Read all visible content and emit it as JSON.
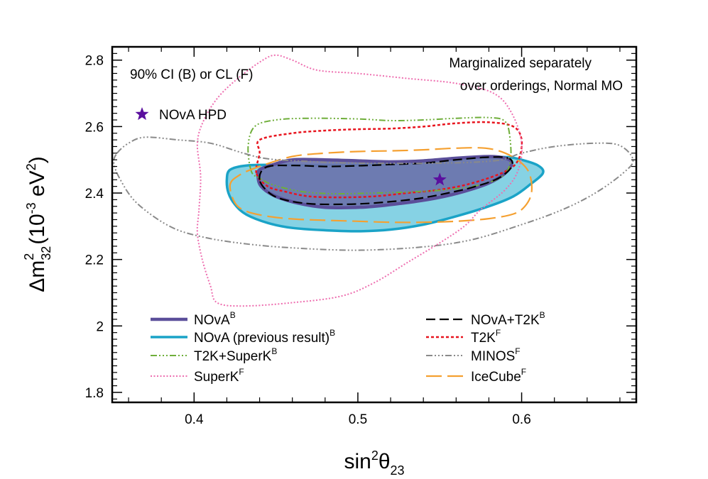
{
  "chart_data": {
    "type": "contour",
    "xlabel": {
      "base": "sin",
      "sup": "2",
      "sym": "θ",
      "sub": "23"
    },
    "ylabel": {
      "base": "Δm",
      "sub": "32",
      "sup": "2",
      "unit_open": "(10",
      "unit_exp": "-3",
      "unit_mid": " eV",
      "unit_sup": "2",
      "unit_close": ")"
    },
    "xlim": [
      0.35,
      0.67
    ],
    "ylim": [
      1.77,
      2.84
    ],
    "xticks": [
      0.4,
      0.5,
      0.6
    ],
    "yticks": [
      1.8,
      2.0,
      2.2,
      2.4,
      2.6,
      2.8
    ],
    "xtick_labels": [
      "0.4",
      "0.5",
      "0.6"
    ],
    "ytick_labels": [
      "1.8",
      "2",
      "2.2",
      "2.4",
      "2.6",
      "2.8"
    ],
    "annotations": {
      "ci": "90% CI (B) or CL (F)",
      "marg1": "Marginalized separately",
      "marg2": "over orderings, Normal MO",
      "hpd": "NOvA HPD"
    },
    "best_fit": {
      "x": 0.55,
      "y": 2.44,
      "color": "#5a0f9e",
      "label": "NOvA HPD"
    },
    "colors": {
      "nova": "#5b4f9a",
      "nova_fill": "#6b73ad",
      "nova_prev": "#1aa3c7",
      "nova_prev_fill": "#7fd0e3",
      "t2k_superk": "#6fae3a",
      "superk": "#ee6fb0",
      "nova_t2k": "#000000",
      "t2k": "#e8141e",
      "minos": "#8a8a8a",
      "icecube": "#f5a030"
    },
    "series": [
      {
        "id": "nova_prev",
        "name": "NOvA (previous result)",
        "sup": "B",
        "points": [
          [
            0.422,
            2.47
          ],
          [
            0.432,
            2.483
          ],
          [
            0.45,
            2.485
          ],
          [
            0.47,
            2.484
          ],
          [
            0.5,
            2.485
          ],
          [
            0.52,
            2.487
          ],
          [
            0.54,
            2.495
          ],
          [
            0.56,
            2.502
          ],
          [
            0.58,
            2.507
          ],
          [
            0.592,
            2.508
          ],
          [
            0.6,
            2.5
          ],
          [
            0.61,
            2.483
          ],
          [
            0.613,
            2.46
          ],
          [
            0.605,
            2.425
          ],
          [
            0.595,
            2.39
          ],
          [
            0.58,
            2.36
          ],
          [
            0.56,
            2.33
          ],
          [
            0.54,
            2.305
          ],
          [
            0.52,
            2.29
          ],
          [
            0.5,
            2.285
          ],
          [
            0.48,
            2.288
          ],
          [
            0.46,
            2.295
          ],
          [
            0.445,
            2.31
          ],
          [
            0.432,
            2.335
          ],
          [
            0.425,
            2.365
          ],
          [
            0.421,
            2.4
          ],
          [
            0.42,
            2.44
          ]
        ]
      },
      {
        "id": "nova",
        "name": "NOvA",
        "sup": "B",
        "points": [
          [
            0.44,
            2.47
          ],
          [
            0.448,
            2.485
          ],
          [
            0.46,
            2.5
          ],
          [
            0.48,
            2.5
          ],
          [
            0.5,
            2.497
          ],
          [
            0.52,
            2.494
          ],
          [
            0.54,
            2.497
          ],
          [
            0.56,
            2.505
          ],
          [
            0.58,
            2.51
          ],
          [
            0.59,
            2.505
          ],
          [
            0.594,
            2.49
          ],
          [
            0.59,
            2.46
          ],
          [
            0.58,
            2.43
          ],
          [
            0.565,
            2.405
          ],
          [
            0.548,
            2.385
          ],
          [
            0.528,
            2.37
          ],
          [
            0.505,
            2.358
          ],
          [
            0.48,
            2.357
          ],
          [
            0.463,
            2.37
          ],
          [
            0.449,
            2.392
          ],
          [
            0.441,
            2.42
          ],
          [
            0.439,
            2.45
          ]
        ]
      },
      {
        "id": "t2k",
        "name": "T2K",
        "sup": "F",
        "points": [
          [
            0.438,
            2.46
          ],
          [
            0.44,
            2.52
          ],
          [
            0.44,
            2.56
          ],
          [
            0.46,
            2.58
          ],
          [
            0.48,
            2.588
          ],
          [
            0.5,
            2.592
          ],
          [
            0.52,
            2.594
          ],
          [
            0.54,
            2.6
          ],
          [
            0.56,
            2.61
          ],
          [
            0.58,
            2.613
          ],
          [
            0.595,
            2.6
          ],
          [
            0.6,
            2.56
          ],
          [
            0.598,
            2.5
          ],
          [
            0.59,
            2.465
          ],
          [
            0.57,
            2.43
          ],
          [
            0.55,
            2.41
          ],
          [
            0.53,
            2.4
          ],
          [
            0.51,
            2.39
          ],
          [
            0.49,
            2.387
          ],
          [
            0.47,
            2.39
          ],
          [
            0.455,
            2.405
          ],
          [
            0.445,
            2.42
          ]
        ]
      },
      {
        "id": "t2k_superk",
        "name": "T2K+SuperK",
        "sup": "B",
        "points": [
          [
            0.435,
            2.465
          ],
          [
            0.433,
            2.54
          ],
          [
            0.437,
            2.6
          ],
          [
            0.45,
            2.62
          ],
          [
            0.47,
            2.625
          ],
          [
            0.5,
            2.623
          ],
          [
            0.52,
            2.618
          ],
          [
            0.54,
            2.62
          ],
          [
            0.56,
            2.625
          ],
          [
            0.58,
            2.627
          ],
          [
            0.59,
            2.615
          ],
          [
            0.593,
            2.56
          ],
          [
            0.593,
            2.49
          ],
          [
            0.588,
            2.45
          ],
          [
            0.575,
            2.425
          ],
          [
            0.555,
            2.41
          ],
          [
            0.53,
            2.403
          ],
          [
            0.51,
            2.4
          ],
          [
            0.485,
            2.398
          ],
          [
            0.465,
            2.405
          ],
          [
            0.448,
            2.425
          ],
          [
            0.44,
            2.445
          ]
        ]
      },
      {
        "id": "nova_t2k",
        "name": "NOvA+T2K",
        "sup": "B",
        "points": [
          [
            0.44,
            2.44
          ],
          [
            0.444,
            2.478
          ],
          [
            0.46,
            2.483
          ],
          [
            0.48,
            2.48
          ],
          [
            0.5,
            2.482
          ],
          [
            0.52,
            2.486
          ],
          [
            0.54,
            2.49
          ],
          [
            0.56,
            2.5
          ],
          [
            0.58,
            2.508
          ],
          [
            0.592,
            2.505
          ],
          [
            0.594,
            2.48
          ],
          [
            0.586,
            2.445
          ],
          [
            0.572,
            2.42
          ],
          [
            0.555,
            2.4
          ],
          [
            0.535,
            2.382
          ],
          [
            0.51,
            2.37
          ],
          [
            0.49,
            2.366
          ],
          [
            0.47,
            2.368
          ],
          [
            0.455,
            2.38
          ],
          [
            0.446,
            2.4
          ]
        ]
      },
      {
        "id": "icecube",
        "name": "IceCube",
        "sup": "F",
        "points": [
          [
            0.422,
            2.425
          ],
          [
            0.428,
            2.455
          ],
          [
            0.44,
            2.48
          ],
          [
            0.46,
            2.51
          ],
          [
            0.48,
            2.52
          ],
          [
            0.5,
            2.525
          ],
          [
            0.52,
            2.527
          ],
          [
            0.54,
            2.53
          ],
          [
            0.56,
            2.535
          ],
          [
            0.578,
            2.535
          ],
          [
            0.59,
            2.52
          ],
          [
            0.6,
            2.49
          ],
          [
            0.605,
            2.455
          ],
          [
            0.606,
            2.4
          ],
          [
            0.602,
            2.36
          ],
          [
            0.595,
            2.337
          ],
          [
            0.58,
            2.323
          ],
          [
            0.56,
            2.315
          ],
          [
            0.54,
            2.312
          ],
          [
            0.52,
            2.312
          ],
          [
            0.5,
            2.315
          ],
          [
            0.48,
            2.318
          ],
          [
            0.46,
            2.322
          ],
          [
            0.445,
            2.33
          ],
          [
            0.432,
            2.345
          ],
          [
            0.425,
            2.37
          ]
        ]
      },
      {
        "id": "minos",
        "name": "MINOS",
        "sup": "F",
        "points": [
          [
            0.353,
            2.52
          ],
          [
            0.36,
            2.55
          ],
          [
            0.37,
            2.568
          ],
          [
            0.39,
            2.56
          ],
          [
            0.41,
            2.55
          ],
          [
            0.43,
            2.52
          ],
          [
            0.445,
            2.503
          ],
          [
            0.47,
            2.495
          ],
          [
            0.5,
            2.49
          ],
          [
            0.55,
            2.49
          ],
          [
            0.585,
            2.498
          ],
          [
            0.6,
            2.52
          ],
          [
            0.62,
            2.54
          ],
          [
            0.645,
            2.55
          ],
          [
            0.66,
            2.543
          ],
          [
            0.668,
            2.5
          ],
          [
            0.662,
            2.46
          ],
          [
            0.645,
            2.4
          ],
          [
            0.625,
            2.35
          ],
          [
            0.6,
            2.305
          ],
          [
            0.57,
            2.26
          ],
          [
            0.54,
            2.238
          ],
          [
            0.5,
            2.228
          ],
          [
            0.46,
            2.235
          ],
          [
            0.43,
            2.248
          ],
          [
            0.405,
            2.268
          ],
          [
            0.385,
            2.3
          ],
          [
            0.365,
            2.37
          ],
          [
            0.355,
            2.44
          ],
          [
            0.351,
            2.49
          ]
        ]
      },
      {
        "id": "superk",
        "name": "SuperK",
        "sup": "F",
        "points": [
          [
            0.403,
            2.35
          ],
          [
            0.404,
            2.45
          ],
          [
            0.402,
            2.55
          ],
          [
            0.406,
            2.62
          ],
          [
            0.415,
            2.69
          ],
          [
            0.428,
            2.75
          ],
          [
            0.442,
            2.8
          ],
          [
            0.45,
            2.815
          ],
          [
            0.46,
            2.8
          ],
          [
            0.475,
            2.77
          ],
          [
            0.5,
            2.76
          ],
          [
            0.53,
            2.745
          ],
          [
            0.56,
            2.73
          ],
          [
            0.583,
            2.7
          ],
          [
            0.594,
            2.64
          ],
          [
            0.6,
            2.55
          ],
          [
            0.598,
            2.47
          ],
          [
            0.59,
            2.41
          ],
          [
            0.575,
            2.35
          ],
          [
            0.565,
            2.3
          ],
          [
            0.55,
            2.25
          ],
          [
            0.53,
            2.19
          ],
          [
            0.51,
            2.13
          ],
          [
            0.49,
            2.09
          ],
          [
            0.46,
            2.07
          ],
          [
            0.43,
            2.06
          ],
          [
            0.414,
            2.07
          ],
          [
            0.41,
            2.12
          ],
          [
            0.405,
            2.2
          ],
          [
            0.402,
            2.28
          ]
        ]
      }
    ],
    "legend": {
      "position": "bottom",
      "left": [
        {
          "key": "nova",
          "label": "NOvA",
          "sup": "B"
        },
        {
          "key": "nova_prev",
          "label": "NOvA (previous result)",
          "sup": "B"
        },
        {
          "key": "t2k_superk",
          "label": "T2K+SuperK",
          "sup": "B"
        },
        {
          "key": "superk",
          "label": "SuperK",
          "sup": "F"
        }
      ],
      "right": [
        {
          "key": "nova_t2k",
          "label": "NOvA+T2K",
          "sup": "B"
        },
        {
          "key": "t2k",
          "label": "T2K",
          "sup": "F"
        },
        {
          "key": "minos",
          "label": "MINOS",
          "sup": "F"
        },
        {
          "key": "icecube",
          "label": "IceCube",
          "sup": "F"
        }
      ]
    }
  }
}
